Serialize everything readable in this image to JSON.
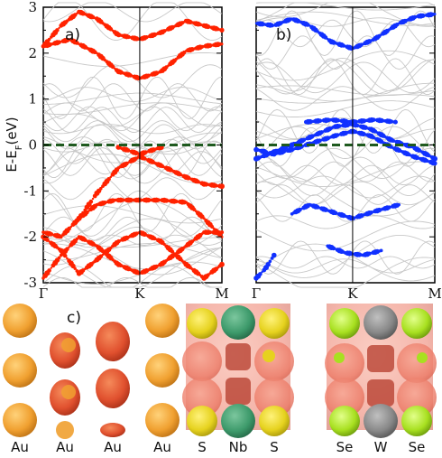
{
  "chart_data": [
    {
      "type": "scatter",
      "panel_label": "a)",
      "ylabel_main": "E-E",
      "ylabel_sub": "F",
      "ylabel_unit": "(eV)",
      "ylim": [
        -3,
        3
      ],
      "yticks": [
        "-3",
        "-2",
        "-1",
        "0",
        "1",
        "2",
        "3"
      ],
      "xticks": [
        "Γ",
        "K",
        "M"
      ],
      "x_positions": [
        0,
        0.54,
        1
      ],
      "fermi_level": 0,
      "highlight_color": "#ff2200",
      "background_band_color": "#c8c8c8",
      "fermi_line_color": "#1f5a1f",
      "highlighted_bands": [
        {
          "points": [
            [
              0,
              2.15
            ],
            [
              0.15,
              2.3
            ],
            [
              0.3,
              2.0
            ],
            [
              0.42,
              1.6
            ],
            [
              0.54,
              1.45
            ],
            [
              0.66,
              1.6
            ],
            [
              0.8,
              2.05
            ],
            [
              0.9,
              2.15
            ],
            [
              1,
              2.2
            ]
          ]
        },
        {
          "points": [
            [
              0,
              2.15
            ],
            [
              0.1,
              2.6
            ],
            [
              0.2,
              2.9
            ],
            [
              0.3,
              2.75
            ],
            [
              0.42,
              2.4
            ],
            [
              0.54,
              2.3
            ],
            [
              0.66,
              2.45
            ],
            [
              0.8,
              2.7
            ],
            [
              0.9,
              2.6
            ],
            [
              1,
              2.5
            ]
          ]
        },
        {
          "points": [
            [
              0.2,
              -1.6
            ],
            [
              0.3,
              -1.05
            ],
            [
              0.42,
              -0.5
            ],
            [
              0.54,
              -0.25
            ],
            [
              0.66,
              -0.45
            ],
            [
              0.8,
              -0.7
            ],
            [
              0.9,
              -0.85
            ],
            [
              1,
              -0.9
            ]
          ]
        },
        {
          "points": [
            [
              0.42,
              -0.05
            ],
            [
              0.54,
              -0.2
            ],
            [
              0.66,
              -0.05
            ]
          ]
        },
        {
          "points": [
            [
              0,
              -1.9
            ],
            [
              0.1,
              -2.0
            ],
            [
              0.2,
              -1.6
            ],
            [
              0.3,
              -1.3
            ],
            [
              0.4,
              -1.2
            ],
            [
              0.54,
              -1.2
            ],
            [
              0.66,
              -1.2
            ],
            [
              0.8,
              -1.25
            ],
            [
              0.9,
              -1.6
            ],
            [
              1,
              -2.0
            ]
          ]
        },
        {
          "points": [
            [
              0,
              -2.9
            ],
            [
              0.1,
              -2.4
            ],
            [
              0.2,
              -2.0
            ],
            [
              0.3,
              -2.2
            ],
            [
              0.42,
              -2.6
            ],
            [
              0.54,
              -2.8
            ],
            [
              0.66,
              -2.6
            ],
            [
              0.8,
              -2.2
            ],
            [
              0.9,
              -1.9
            ],
            [
              1,
              -1.9
            ]
          ]
        },
        {
          "points": [
            [
              0,
              -2.0
            ],
            [
              0.1,
              -2.3
            ],
            [
              0.2,
              -2.8
            ],
            [
              0.3,
              -2.5
            ],
            [
              0.42,
              -2.1
            ],
            [
              0.54,
              -1.9
            ],
            [
              0.66,
              -2.1
            ],
            [
              0.8,
              -2.6
            ],
            [
              0.9,
              -2.9
            ],
            [
              1,
              -2.6
            ]
          ]
        }
      ]
    },
    {
      "type": "scatter",
      "panel_label": "b)",
      "ylim": [
        -3,
        3
      ],
      "xticks": [
        "Γ",
        "K",
        "M"
      ],
      "x_positions": [
        0,
        0.54,
        1
      ],
      "fermi_level": 0,
      "highlight_color": "#1030ff",
      "background_band_color": "#c8c8c8",
      "fermi_line_color": "#1f5a1f",
      "highlighted_bands": [
        {
          "points": [
            [
              0,
              2.65
            ],
            [
              0.1,
              2.6
            ],
            [
              0.2,
              2.75
            ],
            [
              0.3,
              2.6
            ],
            [
              0.42,
              2.25
            ],
            [
              0.54,
              2.1
            ],
            [
              0.66,
              2.3
            ],
            [
              0.8,
              2.65
            ],
            [
              0.9,
              2.8
            ],
            [
              1,
              2.85
            ]
          ]
        },
        {
          "points": [
            [
              0.28,
              0.5
            ],
            [
              0.42,
              0.55
            ],
            [
              0.54,
              0.5
            ],
            [
              0.66,
              0.55
            ],
            [
              0.78,
              0.5
            ]
          ]
        },
        {
          "points": [
            [
              0,
              -0.3
            ],
            [
              0.1,
              -0.15
            ],
            [
              0.2,
              0.0
            ],
            [
              0.32,
              0.2
            ],
            [
              0.44,
              0.4
            ],
            [
              0.54,
              0.45
            ],
            [
              0.64,
              0.35
            ],
            [
              0.76,
              0.1
            ],
            [
              0.88,
              -0.05
            ],
            [
              1,
              -0.3
            ]
          ]
        },
        {
          "points": [
            [
              0,
              -0.1
            ],
            [
              0.1,
              -0.2
            ],
            [
              0.2,
              -0.1
            ],
            [
              0.32,
              0.05
            ],
            [
              0.44,
              0.2
            ],
            [
              0.54,
              0.3
            ],
            [
              0.64,
              0.2
            ],
            [
              0.76,
              -0.05
            ],
            [
              0.88,
              -0.25
            ],
            [
              1,
              -0.4
            ]
          ]
        },
        {
          "points": [
            [
              0.2,
              -1.5
            ],
            [
              0.3,
              -1.3
            ],
            [
              0.42,
              -1.45
            ],
            [
              0.54,
              -1.6
            ],
            [
              0.66,
              -1.45
            ],
            [
              0.8,
              -1.3
            ]
          ]
        },
        {
          "points": [
            [
              0.4,
              -2.2
            ],
            [
              0.5,
              -2.35
            ],
            [
              0.6,
              -2.4
            ],
            [
              0.7,
              -2.3
            ]
          ]
        },
        {
          "points": [
            [
              0,
              -2.9
            ],
            [
              0.05,
              -2.7
            ],
            [
              0.1,
              -2.4
            ]
          ]
        }
      ]
    }
  ],
  "structures": {
    "panel_label": "c)",
    "au_labels": [
      "Au",
      "Au",
      "Au",
      "Au"
    ],
    "nbs2_labels": [
      "S",
      "Nb",
      "S"
    ],
    "wse2_labels": [
      "Se",
      "W",
      "Se"
    ],
    "colors": {
      "au": "#f0a030",
      "charge_cloud": "#f08070",
      "charge_core": "#e8503a",
      "nb": "#3d9a6b",
      "w": "#888888",
      "s": "#e6d21e",
      "se": "#a8e020"
    }
  }
}
